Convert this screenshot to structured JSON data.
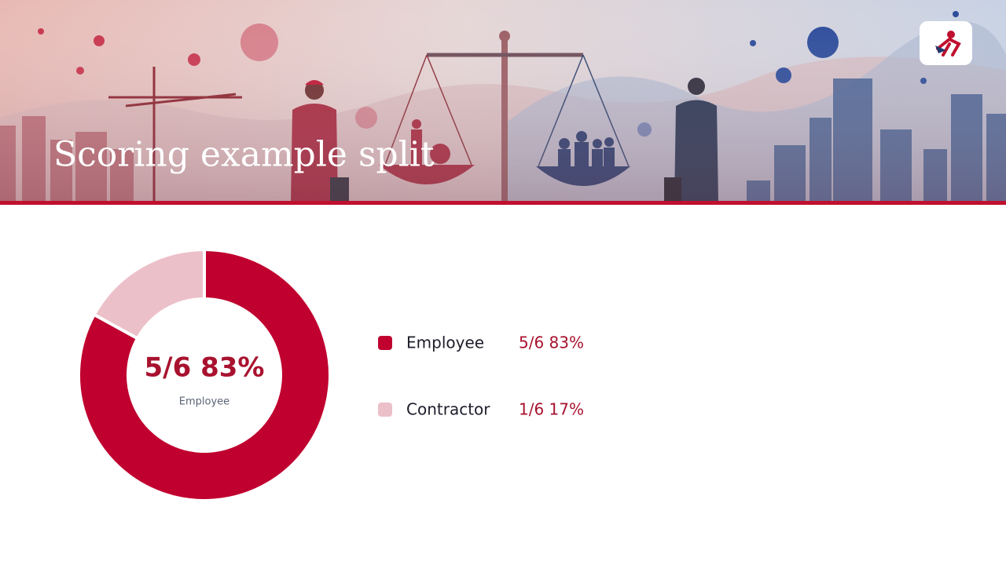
{
  "chart_data": {
    "type": "pie",
    "donut": true,
    "title": "Scoring example split",
    "categories": [
      "Employee",
      "Contractor"
    ],
    "values": [
      83,
      17
    ],
    "value_labels": [
      "5/6 83%",
      "1/6 17%"
    ],
    "colors": [
      "#c0002f",
      "#ecc0c9"
    ]
  }
}
